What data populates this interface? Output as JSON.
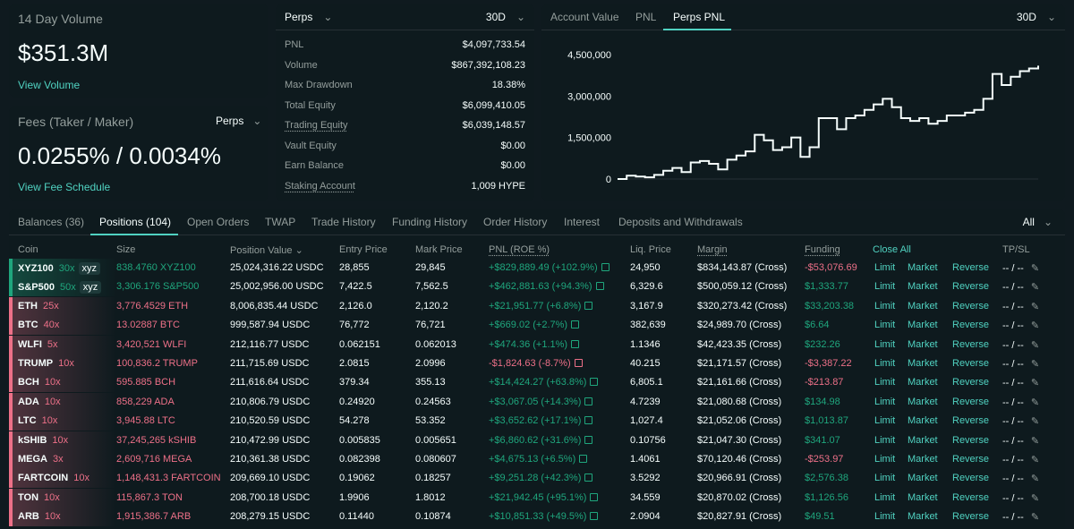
{
  "volume_card": {
    "label": "14 Day Volume",
    "value": "$351.3M",
    "link": "View Volume"
  },
  "fees_card": {
    "label": "Fees (Taker / Maker)",
    "selector": "Perps",
    "value": "0.0255% / 0.0034%",
    "link": "View Fee Schedule"
  },
  "stats_card": {
    "selector": "Perps",
    "range": "30D",
    "rows": [
      {
        "key": "PNL",
        "value": "$4,097,733.54",
        "positive": true
      },
      {
        "key": "Volume",
        "value": "$867,392,108.23"
      },
      {
        "key": "Max Drawdown",
        "value": "18.38%"
      },
      {
        "key": "Total Equity",
        "value": "$6,099,410.05"
      },
      {
        "key": "Trading Equity",
        "value": "$6,039,148.57",
        "underlined": true
      },
      {
        "key": "Vault Equity",
        "value": "$0.00"
      },
      {
        "key": "Earn Balance",
        "value": "$0.00"
      },
      {
        "key": "Staking Account",
        "value": "1,009 HYPE",
        "underlined": true
      }
    ]
  },
  "chart_panel": {
    "tabs": [
      "Account Value",
      "PNL",
      "Perps PNL"
    ],
    "active_tab": "Perps PNL",
    "range": "30D"
  },
  "chart_data": {
    "type": "line",
    "step": true,
    "y_ticks": [
      "4,500,000",
      "3,000,000",
      "1,500,000",
      "0"
    ],
    "ylim": [
      0,
      4500000
    ],
    "values": [
      0,
      120000,
      90000,
      60000,
      150000,
      300000,
      400000,
      250000,
      600000,
      650000,
      550000,
      350000,
      700000,
      850000,
      1000000,
      1600000,
      1400000,
      1050000,
      1150000,
      1500000,
      800000,
      1150000,
      2200000,
      2200000,
      1800000,
      2200000,
      2300000,
      2500000,
      2700000,
      2900000,
      2600000,
      2200000,
      2100000,
      2200000,
      2000000,
      2100000,
      2300000,
      2300000,
      2400000,
      2500000,
      2900000,
      3800000,
      3400000,
      3700000,
      3900000,
      4000000,
      4100000
    ],
    "color": "#f6fefd"
  },
  "table": {
    "tabs": [
      "Balances (36)",
      "Positions (104)",
      "Open Orders",
      "TWAP",
      "Trade History",
      "Funding History",
      "Order History",
      "Interest",
      "Deposits and Withdrawals"
    ],
    "active_tab": "Positions (104)",
    "filter": "All",
    "headers": {
      "coin": "Coin",
      "size": "Size",
      "position_value": "Position Value",
      "entry": "Entry Price",
      "mark": "Mark Price",
      "pnl": "PNL (ROE %)",
      "liq": "Liq. Price",
      "margin": "Margin",
      "funding": "Funding",
      "close_all": "Close All",
      "tpsl": "TP/SL"
    },
    "actions": {
      "limit": "Limit",
      "market": "Market",
      "reverse": "Reverse",
      "tpsl": "-- / --"
    },
    "rows": [
      {
        "coin": "XYZ100",
        "lev": "30x",
        "tag": "xyz",
        "side": "long",
        "size": "838.4760 XYZ100",
        "value": "25,024,316.22 USDC",
        "entry": "28,855",
        "mark": "29,845",
        "pnl": "+$829,889.49 (+102.9%)",
        "pnl_pos": true,
        "liq": "24,950",
        "margin": "$834,143.87 (Cross)",
        "funding": "-$53,076.69",
        "fund_pos": false
      },
      {
        "coin": "S&P500",
        "lev": "50x",
        "tag": "xyz",
        "side": "long",
        "size": "3,306.176 S&P500",
        "value": "25,002,956.00 USDC",
        "entry": "7,422.5",
        "mark": "7,562.5",
        "pnl": "+$462,881.63 (+94.3%)",
        "pnl_pos": true,
        "liq": "6,329.6",
        "margin": "$500,059.12 (Cross)",
        "funding": "$1,333.77",
        "fund_pos": true
      },
      {
        "coin": "ETH",
        "lev": "25x",
        "side": "short",
        "size": "3,776.4529 ETH",
        "value": "8,006,835.44 USDC",
        "entry": "2,126.0",
        "mark": "2,120.2",
        "pnl": "+$21,951.77 (+6.8%)",
        "pnl_pos": true,
        "liq": "3,167.9",
        "margin": "$320,273.42 (Cross)",
        "funding": "$33,203.38",
        "fund_pos": true
      },
      {
        "coin": "BTC",
        "lev": "40x",
        "side": "short",
        "size": "13.02887 BTC",
        "value": "999,587.94 USDC",
        "entry": "76,772",
        "mark": "76,721",
        "pnl": "+$669.02 (+2.7%)",
        "pnl_pos": true,
        "liq": "382,639",
        "margin": "$24,989.70 (Cross)",
        "funding": "$6.64",
        "fund_pos": true
      },
      {
        "coin": "WLFI",
        "lev": "5x",
        "side": "short",
        "size": "3,420,521 WLFI",
        "value": "212,116.77 USDC",
        "entry": "0.062151",
        "mark": "0.062013",
        "pnl": "+$474.36 (+1.1%)",
        "pnl_pos": true,
        "liq": "1.1346",
        "margin": "$42,423.35 (Cross)",
        "funding": "$232.26",
        "fund_pos": true
      },
      {
        "coin": "TRUMP",
        "lev": "10x",
        "side": "short",
        "size": "100,836.2 TRUMP",
        "value": "211,715.69 USDC",
        "entry": "2.0815",
        "mark": "2.0996",
        "pnl": "-$1,824.63 (-8.7%)",
        "pnl_pos": false,
        "liq": "40.215",
        "margin": "$21,171.57 (Cross)",
        "funding": "-$3,387.22",
        "fund_pos": false
      },
      {
        "coin": "BCH",
        "lev": "10x",
        "side": "short",
        "size": "595.885 BCH",
        "value": "211,616.64 USDC",
        "entry": "379.34",
        "mark": "355.13",
        "pnl": "+$14,424.27 (+63.8%)",
        "pnl_pos": true,
        "liq": "6,805.1",
        "margin": "$21,161.66 (Cross)",
        "funding": "-$213.87",
        "fund_pos": false
      },
      {
        "coin": "ADA",
        "lev": "10x",
        "side": "short",
        "size": "858,229 ADA",
        "value": "210,806.79 USDC",
        "entry": "0.24920",
        "mark": "0.24563",
        "pnl": "+$3,067.05 (+14.3%)",
        "pnl_pos": true,
        "liq": "4.7239",
        "margin": "$21,080.68 (Cross)",
        "funding": "$134.98",
        "fund_pos": true
      },
      {
        "coin": "LTC",
        "lev": "10x",
        "side": "short",
        "size": "3,945.88 LTC",
        "value": "210,520.59 USDC",
        "entry": "54.278",
        "mark": "53.352",
        "pnl": "+$3,652.62 (+17.1%)",
        "pnl_pos": true,
        "liq": "1,027.4",
        "margin": "$21,052.06 (Cross)",
        "funding": "$1,013.87",
        "fund_pos": true
      },
      {
        "coin": "kSHIB",
        "lev": "10x",
        "side": "short",
        "size": "37,245,265 kSHIB",
        "value": "210,472.99 USDC",
        "entry": "0.005835",
        "mark": "0.005651",
        "pnl": "+$6,860.62 (+31.6%)",
        "pnl_pos": true,
        "liq": "0.10756",
        "margin": "$21,047.30 (Cross)",
        "funding": "$341.07",
        "fund_pos": true
      },
      {
        "coin": "MEGA",
        "lev": "3x",
        "side": "short",
        "size": "2,609,716 MEGA",
        "value": "210,361.38 USDC",
        "entry": "0.082398",
        "mark": "0.080607",
        "pnl": "+$4,675.13 (+6.5%)",
        "pnl_pos": true,
        "liq": "1.4061",
        "margin": "$70,120.46 (Cross)",
        "funding": "-$253.97",
        "fund_pos": false
      },
      {
        "coin": "FARTCOIN",
        "lev": "10x",
        "side": "short",
        "size": "1,148,431.3 FARTCOIN",
        "value": "209,669.10 USDC",
        "entry": "0.19062",
        "mark": "0.18257",
        "pnl": "+$9,251.28 (+42.3%)",
        "pnl_pos": true,
        "liq": "3.5292",
        "margin": "$20,966.91 (Cross)",
        "funding": "$2,576.38",
        "fund_pos": true
      },
      {
        "coin": "TON",
        "lev": "10x",
        "side": "short",
        "size": "115,867.3 TON",
        "value": "208,700.18 USDC",
        "entry": "1.9906",
        "mark": "1.8012",
        "pnl": "+$21,942.45 (+95.1%)",
        "pnl_pos": true,
        "liq": "34.559",
        "margin": "$20,870.02 (Cross)",
        "funding": "$1,126.56",
        "fund_pos": true
      },
      {
        "coin": "ARB",
        "lev": "10x",
        "side": "short",
        "size": "1,915,386.7 ARB",
        "value": "208,279.15 USDC",
        "entry": "0.11440",
        "mark": "0.10874",
        "pnl": "+$10,851.33 (+49.5%)",
        "pnl_pos": true,
        "liq": "2.0904",
        "margin": "$20,827.91 (Cross)",
        "funding": "$49.51",
        "fund_pos": true
      }
    ]
  },
  "colors": {
    "green": "#1fa67d",
    "red": "#ed7088",
    "accent": "#50d2c1",
    "bg": "#0f1a1f",
    "panel": "#0e1a1e"
  },
  "icons": {
    "dropdown": "chevron-down-icon",
    "external": "external-link-icon",
    "edit": "pencil-icon"
  }
}
